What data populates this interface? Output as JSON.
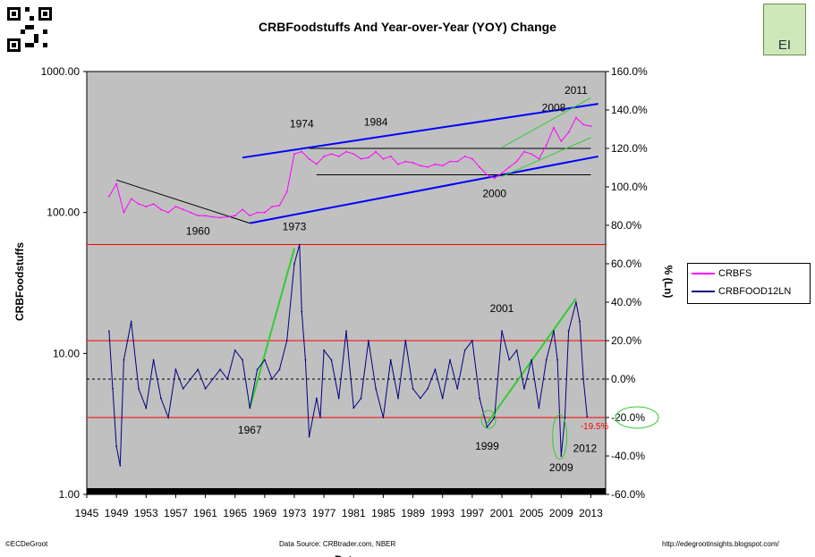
{
  "title": "CRBFoodstuffs And Year-over-Year (YOY) Change",
  "footer": {
    "left": "©ECDeGroot",
    "center": "Data Source:  CRBtrader.com, NBER",
    "right": "http://edegrootinsights.blogspot.com/"
  },
  "logo": {
    "text": "EI"
  },
  "colors": {
    "crbfs": "#ff00ff",
    "yoy": "#000080",
    "trend_blue": "#0000ff",
    "trend_green": "#33cc33",
    "red_line": "#ff0000",
    "plot_bg": "#c0c0c0"
  },
  "chart_data": {
    "type": "line",
    "title": "CRBFoodstuffs And Year-over-Year (YOY) Change",
    "xlabel": "Date",
    "ylabel": "CRBFoodstuffs",
    "y2label": "% (Ln)",
    "x_range": [
      1945,
      2015
    ],
    "x_ticks": [
      "1945",
      "1949",
      "1953",
      "1957",
      "1961",
      "1965",
      "1969",
      "1973",
      "1977",
      "1981",
      "1985",
      "1989",
      "1993",
      "1997",
      "2001",
      "2005",
      "2009",
      "2013"
    ],
    "y_scale": "log",
    "y_range": [
      1,
      1000
    ],
    "y_ticks": [
      "1.00",
      "10.00",
      "100.00",
      "1000.00"
    ],
    "y2_range": [
      -60,
      160
    ],
    "y2_ticks": [
      "-60.0%",
      "-40.0%",
      "-20.0%",
      "0.0%",
      "20.0%",
      "40.0%",
      "60.0%",
      "80.0%",
      "100.0%",
      "120.0%",
      "140.0%",
      "160.0%"
    ],
    "legend": {
      "position": "right",
      "entries": [
        "CRBFS",
        "CRBFOOD12LN"
      ]
    },
    "series": [
      {
        "name": "CRBFS",
        "axis": "left",
        "x": [
          1948,
          1949,
          1950,
          1951,
          1952,
          1953,
          1954,
          1955,
          1956,
          1957,
          1958,
          1959,
          1960,
          1961,
          1962,
          1963,
          1964,
          1965,
          1966,
          1967,
          1968,
          1969,
          1970,
          1971,
          1972,
          1973,
          1974,
          1975,
          1976,
          1977,
          1978,
          1979,
          1980,
          1981,
          1982,
          1983,
          1984,
          1985,
          1986,
          1987,
          1988,
          1989,
          1990,
          1991,
          1992,
          1993,
          1994,
          1995,
          1996,
          1997,
          1998,
          1999,
          2000,
          2001,
          2002,
          2003,
          2004,
          2005,
          2006,
          2007,
          2008,
          2009,
          2010,
          2011,
          2012,
          2013
        ],
        "values": [
          130,
          160,
          100,
          125,
          115,
          110,
          115,
          105,
          100,
          110,
          105,
          100,
          95,
          95,
          93,
          92,
          93,
          95,
          105,
          95,
          100,
          100,
          110,
          112,
          140,
          260,
          270,
          240,
          220,
          250,
          260,
          250,
          270,
          260,
          240,
          245,
          270,
          240,
          250,
          220,
          230,
          225,
          215,
          210,
          220,
          215,
          230,
          230,
          250,
          240,
          210,
          185,
          175,
          190,
          210,
          230,
          270,
          260,
          240,
          300,
          400,
          320,
          370,
          470,
          420,
          410
        ]
      },
      {
        "name": "CRBFOOD12LN",
        "axis": "right",
        "x": [
          1948,
          1948.5,
          1949,
          1949.5,
          1950,
          1950.5,
          1951,
          1952,
          1953,
          1954,
          1955,
          1956,
          1957,
          1958,
          1959,
          1960,
          1961,
          1962,
          1963,
          1964,
          1965,
          1966,
          1967,
          1968,
          1969,
          1970,
          1971,
          1972,
          1973,
          1973.7,
          1974,
          1974.5,
          1975,
          1976,
          1976.5,
          1977,
          1978,
          1979,
          1980,
          1981,
          1982,
          1983,
          1984,
          1985,
          1986,
          1987,
          1988,
          1989,
          1990,
          1991,
          1992,
          1993,
          1994,
          1995,
          1996,
          1997,
          1998,
          1999,
          2000,
          2001,
          2002,
          2003,
          2004,
          2005,
          2006,
          2007,
          2008,
          2008.5,
          2009,
          2009.5,
          2010,
          2011,
          2011.5,
          2012,
          2012.5
        ],
        "values": [
          25,
          -5,
          -35,
          -45,
          10,
          20,
          30,
          -5,
          -15,
          10,
          -10,
          -20,
          5,
          -5,
          0,
          5,
          -5,
          0,
          5,
          0,
          15,
          10,
          -15,
          5,
          10,
          0,
          5,
          20,
          60,
          70,
          35,
          10,
          -30,
          -10,
          -20,
          15,
          10,
          -10,
          25,
          -15,
          -10,
          20,
          -5,
          -20,
          10,
          -10,
          20,
          -5,
          -10,
          -5,
          5,
          -10,
          10,
          -5,
          15,
          20,
          -10,
          -25,
          -20,
          25,
          10,
          15,
          -5,
          10,
          -15,
          10,
          25,
          10,
          -40,
          -20,
          25,
          40,
          30,
          0,
          -19.5
        ]
      }
    ],
    "annotations": [
      {
        "text": "1960",
        "x": 1960
      },
      {
        "text": "1973",
        "x": 1973
      },
      {
        "text": "1974",
        "x": 1974
      },
      {
        "text": "1984",
        "x": 1984
      },
      {
        "text": "2000",
        "x": 2000
      },
      {
        "text": "2008",
        "x": 2008
      },
      {
        "text": "2011",
        "x": 2011
      },
      {
        "text": "1967",
        "x": 1967
      },
      {
        "text": "1999",
        "x": 1999
      },
      {
        "text": "2001",
        "x": 2001
      },
      {
        "text": "2009",
        "x": 2009
      },
      {
        "text": "2012",
        "x": 2012
      },
      {
        "text": "-19.5%",
        "x": 2012.5,
        "y": -19.5
      }
    ],
    "horizontal_lines_pct": [
      70,
      20,
      0,
      -20
    ]
  }
}
